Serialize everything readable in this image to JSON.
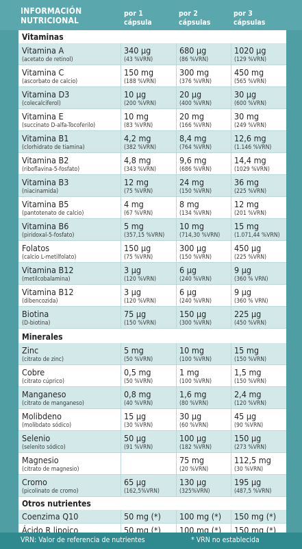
{
  "header": {
    "title_line1": "INFORMACIÓN",
    "title_line2": "NUTRICIONAL",
    "col1_line1": "por 1",
    "col1_line2": "cápsula",
    "col2_line1": "por 2",
    "col2_line2": "cápsulas",
    "col3_line1": "por 3",
    "col3_line2": "cápsulas"
  },
  "sections": {
    "vitaminas": "Vitaminas",
    "minerales": "Minerales",
    "otros": "Otros nutrientes"
  },
  "vitamins": [
    {
      "name": "Vitamina A",
      "sub": "(acetato de retinol)",
      "v1": "340 μg",
      "p1": "(43 %VRN)",
      "v2": "680 μg",
      "p2": "(86 %VRN)",
      "v3": "1020 μg",
      "p3": "(129 %VRN)"
    },
    {
      "name": "Vitamina C",
      "sub": "(ascorbato de calcio)",
      "v1": "150 mg",
      "p1": "(188 %VRN)",
      "v2": "300 mg",
      "p2": "(376 %VRN)",
      "v3": "450 mg",
      "p3": "(565 %VRN)"
    },
    {
      "name": "Vitamina D3",
      "sub": "(colecalciferol)",
      "v1": "10 μg",
      "p1": "(200 %VRN)",
      "v2": "20 μg",
      "p2": "(400 %VRN)",
      "v3": "30 μg",
      "p3": "(600 %VRN)"
    },
    {
      "name": "Vitamina E",
      "sub": "(succinato D-alfa-Tocoferilo)",
      "v1": "10 mg",
      "p1": "(83 %VRN)",
      "v2": "20 mg",
      "p2": "(166 %VRN)",
      "v3": "30 mg",
      "p3": "(249 %VRN)"
    },
    {
      "name": "Vitamina B1",
      "sub": "(clorhidrato de tiamina)",
      "v1": "4,2 mg",
      "p1": "(382 %VRN)",
      "v2": "8,4 mg",
      "p2": "(764 %VRN)",
      "v3": "12,6 mg",
      "p3": "(1.146 %VRN)"
    },
    {
      "name": "Vitamina B2",
      "sub": "(riboflavina-5-fosfato)",
      "v1": "4,8 mg",
      "p1": "(343 %VRN)",
      "v2": "9,6 mg",
      "p2": "(686 %VRN)",
      "v3": "14,4 mg",
      "p3": "(1029 %VRN)"
    },
    {
      "name": "Vitamina B3",
      "sub": "(niacinamida)",
      "v1": "12 mg",
      "p1": "(75 %VRN)",
      "v2": "24 mg",
      "p2": "(150 %VRN)",
      "v3": "36 mg",
      "p3": "(225 %VRN)"
    },
    {
      "name": "Vitamina B5",
      "sub": "(pantotenato de calcio)",
      "v1": "4 mg",
      "p1": "(67 %VRN)",
      "v2": "8 mg",
      "p2": "(134 %VRN)",
      "v3": "12 mg",
      "p3": "(201 %VRN)"
    },
    {
      "name": "Vitamina B6",
      "sub": "(piridoxal-5-fosfato)",
      "v1": "5 mg",
      "p1": "(357,15 %VRN)",
      "v2": "10 mg",
      "p2": "(714,30 %VRN)",
      "v3": "15 mg",
      "p3": "(1.071,44 %VRN)"
    },
    {
      "name": "Folatos",
      "sub": "(calcio L-metilfolato)",
      "v1": "150 μg",
      "p1": "(75 %VRN)",
      "v2": "300 μg",
      "p2": "(150 %VRN)",
      "v3": "450 μg",
      "p3": "(225 %VRN)"
    },
    {
      "name": "Vitamina B12",
      "sub": "(metilcobalamina)",
      "v1": "3 μg",
      "p1": "(120 %VRN)",
      "v2": "6 μg",
      "p2": "(240 %VRN)",
      "v3": "9 μg",
      "p3": "(360 % VRN)"
    },
    {
      "name": "Vitamina B12",
      "sub": "(dibencozida)",
      "v1": "3 μg",
      "p1": "(120 %VRN)",
      "v2": "6 μg",
      "p2": "(240 %VRN)",
      "v3": "9 μg",
      "p3": "(360 % VRN)"
    },
    {
      "name": "Biotina",
      "sub": "(D-biotina)",
      "v1": "75 μg",
      "p1": "(150 %VRN)",
      "v2": "150 μg",
      "p2": "(300 %VRN)",
      "v3": "225 μg",
      "p3": "(450 %VRN)"
    }
  ],
  "minerals": [
    {
      "name": "Zinc",
      "sub": "(citrato de zinc)",
      "v1": "5 mg",
      "p1": "(50 %VRN)",
      "v2": "10 mg",
      "p2": "(100 %VRN)",
      "v3": "15 mg",
      "p3": "(150 %VRN)"
    },
    {
      "name": "Cobre",
      "sub": "(citrato cúprico)",
      "v1": "0,5 mg",
      "p1": "(50 %VRN)",
      "v2": "1 mg",
      "p2": "(100 %VRN)",
      "v3": "1,5 mg",
      "p3": "(150 %VRN)"
    },
    {
      "name": "Manganeso",
      "sub": "(citrato de manganeso)",
      "v1": "0,8 mg",
      "p1": "(40 %VRN)",
      "v2": "1,6 mg",
      "p2": "(80 %VRN)",
      "v3": "2,4 mg",
      "p3": "(120 %VRN)"
    },
    {
      "name": "Molibdeno",
      "sub": "(molibdato sódico)",
      "v1": "15 μg",
      "p1": "(30 %VRN)",
      "v2": "30 μg",
      "p2": "(60 %VRN)",
      "v3": "45 μg",
      "p3": "(90 %VRN)"
    },
    {
      "name": "Selenio",
      "sub": "(selenito sódico)",
      "v1": "50 μg",
      "p1": "(91 %VRN)",
      "v2": "100 μg",
      "p2": "(182 %VRN)",
      "v3": "150 μg",
      "p3": "(273 %VRN)"
    },
    {
      "name": "Magnesio",
      "sub": "(citrato de magnesio)",
      "v1": "",
      "p1": "",
      "v2": "75 mg",
      "p2": "(20 %VRN)",
      "v3": "112,5 mg",
      "p3": "(30 %VRN)"
    },
    {
      "name": "Cromo",
      "sub": "(picolinato de cromo)",
      "v1": "65 μg",
      "p1": "(162,5%VRN)",
      "v2": "130 μg",
      "p2": "(325%VRN)",
      "v3": "195 μg",
      "p3": "(487,5 %VRN)"
    }
  ],
  "others": [
    {
      "name": "Coenzima Q10",
      "v1": "50 mg (*)",
      "v2": "100 mg (*)",
      "v3": "150 mg (*)"
    },
    {
      "name": "Ácido R lipoico",
      "v1": "50 mg (*)",
      "v2": "100 mg (*)",
      "v3": "150 mg (*)"
    }
  ],
  "footer": {
    "left": "VRN: Valor de referencia de nutrientes",
    "right": "* VRN no establecida"
  }
}
